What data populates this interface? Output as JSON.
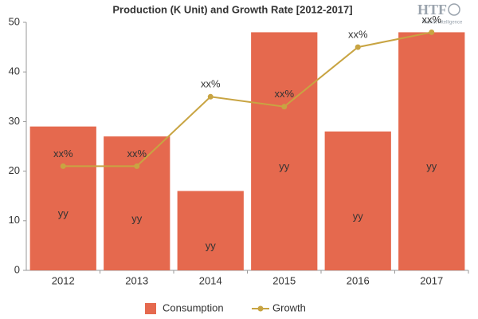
{
  "chart_data": {
    "type": "bar",
    "title": "Production (K Unit) and Growth Rate [2012-2017]",
    "logo": "HTF",
    "logo_subtitle": "Market Intelligence",
    "categories": [
      "2012",
      "2013",
      "2014",
      "2015",
      "2016",
      "2017"
    ],
    "series": [
      {
        "name": "Consumption",
        "type": "bar",
        "color": "#e5694e",
        "values": [
          29,
          27,
          16,
          48,
          28,
          48
        ],
        "value_labels": [
          "yy",
          "yy",
          "yy",
          "yy",
          "yy",
          "yy"
        ]
      },
      {
        "name": "Growth",
        "type": "line",
        "color": "#c8a442",
        "values": [
          21,
          21,
          35,
          33,
          45,
          48
        ],
        "value_labels": [
          "xx%",
          "xx%",
          "xx%",
          "xx%",
          "xx%",
          "xx%"
        ]
      }
    ],
    "ylim": [
      0,
      50
    ],
    "yticks": [
      0,
      10,
      20,
      30,
      40,
      50
    ],
    "grid": false,
    "legend": "bottom"
  }
}
